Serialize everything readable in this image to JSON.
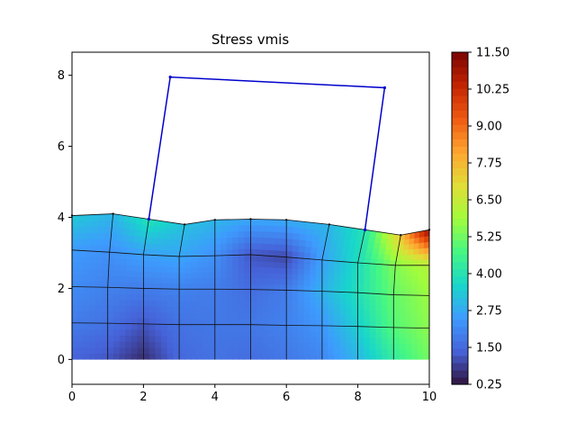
{
  "chart_data": {
    "type": "heatmap",
    "title": "Stress vmis",
    "xlabel": "",
    "ylabel": "",
    "xlim": [
      0,
      10
    ],
    "ylim": [
      -0.7,
      8.65
    ],
    "x_ticks": [
      "0",
      "2",
      "4",
      "6",
      "8",
      "10"
    ],
    "y_ticks": [
      "0",
      "2",
      "4",
      "6",
      "8"
    ],
    "colorbar": {
      "min": 0.25,
      "max": 11.5,
      "ticks": [
        "0.25",
        "1.50",
        "2.75",
        "4.00",
        "5.25",
        "6.50",
        "7.75",
        "9.00",
        "10.25",
        "11.50"
      ],
      "colormap": "turbo"
    },
    "indenter": [
      [
        2.15,
        3.95
      ],
      [
        2.75,
        7.95
      ],
      [
        8.75,
        7.65
      ],
      [
        8.2,
        3.65
      ]
    ],
    "mesh": {
      "top_surface": [
        [
          0,
          4.05
        ],
        [
          1.15,
          4.1
        ],
        [
          2.15,
          3.95
        ],
        [
          3.15,
          3.8
        ],
        [
          4.0,
          3.93
        ],
        [
          5.0,
          3.95
        ],
        [
          6.0,
          3.93
        ],
        [
          7.2,
          3.8
        ],
        [
          8.2,
          3.65
        ],
        [
          9.2,
          3.5
        ],
        [
          10,
          3.65
        ]
      ],
      "row_3": [
        [
          0,
          3.08
        ],
        [
          1.05,
          3.02
        ],
        [
          2.0,
          2.95
        ],
        [
          3.0,
          2.9
        ],
        [
          4.0,
          2.92
        ],
        [
          5.0,
          2.95
        ],
        [
          6.0,
          2.88
        ],
        [
          7.0,
          2.8
        ],
        [
          8.0,
          2.72
        ],
        [
          9.05,
          2.65
        ],
        [
          10,
          2.65
        ]
      ],
      "row_2": [
        [
          0,
          2.05
        ],
        [
          1.0,
          2.03
        ],
        [
          2.0,
          2.0
        ],
        [
          3.0,
          1.98
        ],
        [
          4.0,
          1.98
        ],
        [
          5.0,
          1.97
        ],
        [
          6.0,
          1.95
        ],
        [
          7.0,
          1.92
        ],
        [
          8.0,
          1.88
        ],
        [
          9.0,
          1.82
        ],
        [
          10,
          1.8
        ]
      ],
      "row_1": [
        [
          0,
          1.03
        ],
        [
          1.0,
          1.02
        ],
        [
          2.0,
          1.0
        ],
        [
          3.0,
          0.98
        ],
        [
          4.0,
          0.98
        ],
        [
          5.0,
          0.98
        ],
        [
          6.0,
          0.96
        ],
        [
          7.0,
          0.95
        ],
        [
          8.0,
          0.93
        ],
        [
          9.0,
          0.9
        ],
        [
          10,
          0.88
        ]
      ],
      "bottom": [
        [
          0,
          0
        ],
        [
          1.0,
          0
        ],
        [
          2.0,
          0
        ],
        [
          3.0,
          0
        ],
        [
          4.0,
          0
        ],
        [
          5.0,
          0
        ],
        [
          6.0,
          0
        ],
        [
          7.0,
          0
        ],
        [
          8.0,
          0
        ],
        [
          9.0,
          0
        ],
        [
          10,
          0
        ]
      ]
    },
    "stress_field": [
      [
        1.4,
        1.2,
        0.6,
        1.5,
        1.7,
        1.6,
        1.8,
        2.1,
        3.0,
        4.3,
        5.3
      ],
      [
        1.9,
        1.7,
        1.2,
        1.7,
        1.8,
        1.8,
        2.0,
        2.4,
        3.5,
        4.9,
        5.6
      ],
      [
        2.2,
        2.0,
        1.9,
        2.0,
        1.9,
        1.6,
        1.9,
        2.9,
        3.9,
        5.1,
        5.8
      ],
      [
        2.5,
        2.3,
        2.6,
        2.7,
        2.3,
        1.2,
        1.0,
        2.6,
        3.8,
        5.5,
        6.2
      ],
      [
        3.4,
        3.0,
        4.0,
        3.2,
        3.0,
        2.7,
        2.8,
        3.0,
        4.0,
        7.5,
        11.2
      ]
    ]
  }
}
